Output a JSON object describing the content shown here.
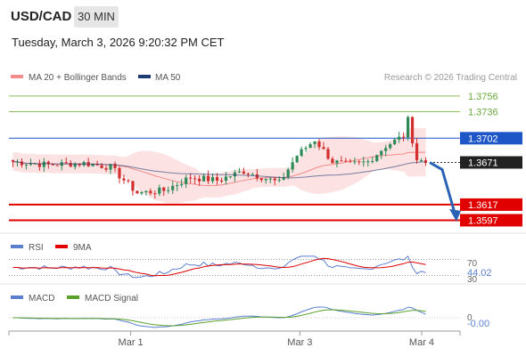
{
  "header": {
    "symbol": "USD/CAD",
    "timeframe": "30 MIN",
    "datetime": "Tuesday, March 3, 2026 9:20:32 PM CET"
  },
  "colors": {
    "bull": "#2e8b57",
    "bear": "#d32f2f",
    "bollinger": "#f28b8b",
    "ma50": "#1f3b73",
    "blue_level": "#1e56c8",
    "red_level": "#e00000",
    "green_level": "#8dbf5a",
    "forecast_arrow": "#2a62b5",
    "rsi": "#5b7fcf",
    "macd": "#5b7fcf",
    "macd_signal": "#5aa02c"
  },
  "chart_data": [
    {
      "type": "candlestick",
      "legend": [
        {
          "key": "bb",
          "label": "MA 20 + Bollinger Bands",
          "color": "#f28b8b"
        },
        {
          "key": "ma50",
          "label": "MA 50",
          "color": "#1f3b73"
        }
      ],
      "credit": "Research © 2026 Trading Central",
      "ylim": [
        1.3585,
        1.3765
      ],
      "levels": [
        {
          "value": 1.3756,
          "label": "1.3756",
          "style": "green"
        },
        {
          "value": 1.3736,
          "label": "1.3736",
          "style": "green"
        },
        {
          "value": 1.3702,
          "label": "1.3702",
          "style": "blue"
        },
        {
          "value": 1.3671,
          "label": "1.3671",
          "style": "current"
        },
        {
          "value": 1.3617,
          "label": "1.3617",
          "style": "red"
        },
        {
          "value": 1.3597,
          "label": "1.3597",
          "style": "red"
        }
      ],
      "forecast": {
        "from": 1.3671,
        "to": 1.36
      },
      "candles_count": 94
    },
    {
      "type": "line",
      "legend": [
        {
          "key": "rsi",
          "label": "RSI",
          "color": "#5b7fcf"
        },
        {
          "key": "ma9",
          "label": "9MA",
          "color": "#e00000"
        }
      ],
      "levels": [
        70,
        30
      ],
      "level_labels": [
        "70",
        "30"
      ],
      "current_value": "44.02"
    },
    {
      "type": "line",
      "legend": [
        {
          "key": "macd",
          "label": "MACD",
          "color": "#5b7fcf"
        },
        {
          "key": "signal",
          "label": "MACD Signal",
          "color": "#5aa02c"
        }
      ],
      "zero_label": "0",
      "current_value": "-0.00"
    }
  ],
  "xaxis": {
    "ticks": [
      {
        "label": "Mar 1",
        "pos": 0.27
      },
      {
        "label": "Mar 3",
        "pos": 0.645
      },
      {
        "label": "Mar 4",
        "pos": 0.915
      }
    ]
  }
}
